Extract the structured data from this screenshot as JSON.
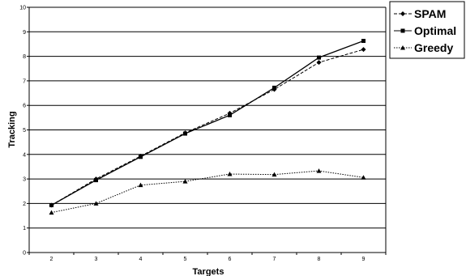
{
  "chart_data": {
    "type": "line",
    "xlabel": "Targets",
    "ylabel": "Tracking",
    "x": [
      2,
      3,
      4,
      5,
      6,
      7,
      8,
      9
    ],
    "ylim": [
      0,
      10
    ],
    "yticks": [
      0,
      1,
      2,
      3,
      4,
      5,
      6,
      7,
      8,
      9,
      10
    ],
    "grid": "horizontal",
    "legend_position": "top-right",
    "series": [
      {
        "name": "SPAM",
        "values": [
          1.93,
          3.0,
          3.93,
          4.88,
          5.68,
          6.65,
          7.75,
          8.28
        ],
        "marker": "diamond",
        "line": "dashed"
      },
      {
        "name": "Optimal",
        "values": [
          1.93,
          2.95,
          3.9,
          4.85,
          5.6,
          6.72,
          7.95,
          8.63
        ],
        "marker": "square",
        "line": "solid"
      },
      {
        "name": "Greedy",
        "values": [
          1.63,
          2.0,
          2.75,
          2.9,
          3.2,
          3.18,
          3.33,
          3.06
        ],
        "marker": "triangle",
        "line": "dotted"
      }
    ]
  }
}
